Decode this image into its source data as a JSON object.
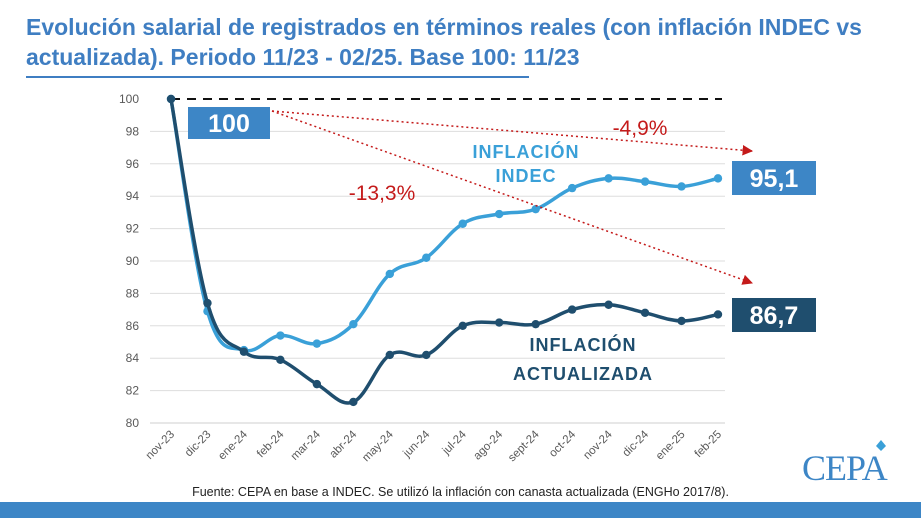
{
  "header": {
    "title": "Evolución salarial de registrados en términos reales (con inflación INDEC vs actualizada). Periodo 11/23 - 02/25. Base 100: 11/23"
  },
  "chart_data": {
    "type": "line",
    "categories": [
      "nov-23",
      "dic-23",
      "ene-24",
      "feb-24",
      "mar-24",
      "abr-24",
      "may-24",
      "jun-24",
      "jul-24",
      "ago-24",
      "sept-24",
      "oct-24",
      "nov-24",
      "dic-24",
      "ene-25",
      "feb-25"
    ],
    "series": [
      {
        "name": "INFLACIÓN INDEC",
        "color": "#3aa0d8",
        "values": [
          100,
          86.9,
          84.5,
          85.4,
          84.9,
          86.1,
          89.2,
          90.2,
          92.3,
          92.9,
          93.2,
          94.5,
          95.1,
          94.9,
          94.6,
          95.1
        ]
      },
      {
        "name": "INFLACIÓN ACTUALIZADA",
        "color": "#1f4e6e",
        "values": [
          100,
          87.4,
          84.4,
          83.9,
          82.4,
          81.3,
          84.2,
          84.2,
          86.0,
          86.2,
          86.1,
          87.0,
          87.3,
          86.8,
          86.3,
          86.7
        ]
      }
    ],
    "ylim": [
      80,
      100
    ],
    "yticks": [
      "80",
      "82",
      "84",
      "86",
      "88",
      "90",
      "92",
      "94",
      "96",
      "98",
      "100"
    ],
    "base_reference": 100,
    "annotations": {
      "start_label": "100",
      "end_indec_label": "95,1",
      "end_actualizada_label": "86,7",
      "delta_indec": "-4,9%",
      "delta_actualizada": "-13,3%",
      "indec_line1": "INFLACIÓN",
      "indec_line2": "INDEC",
      "act_line1": "INFLACIÓN",
      "act_line2": "ACTUALIZADA"
    },
    "colors": {
      "indec": "#3aa0d8",
      "actualizada": "#1f4e6e",
      "delta": "#c41a1a",
      "label_box_indec": "#3d86c6",
      "label_box_act": "#1f4e6e"
    }
  },
  "footer": {
    "source": "Fuente: CEPA en base a INDEC. Se utilizó la inflación con canasta actualizada (ENGHo 2017/8).",
    "logo": "CEPA"
  }
}
